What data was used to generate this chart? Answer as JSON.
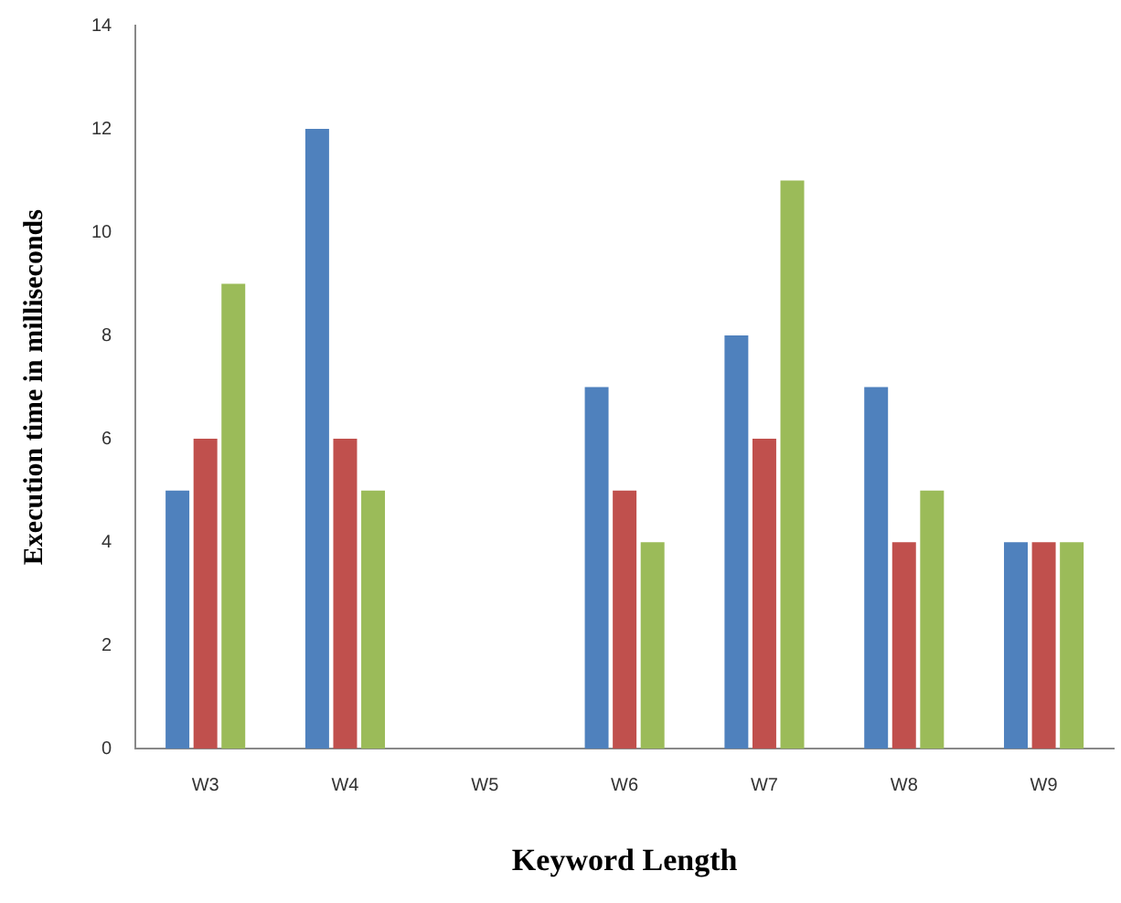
{
  "chart_data": {
    "type": "bar",
    "xlabel": "Keyword Length",
    "ylabel": "Execution time in milliseconds",
    "categories": [
      "W3",
      "W4",
      "W5",
      "W6",
      "W7",
      "W8",
      "W9"
    ],
    "series": [
      {
        "color": "#4f81bd",
        "values": [
          5,
          12,
          0,
          7,
          8,
          7,
          4
        ]
      },
      {
        "color": "#c0504d",
        "values": [
          6,
          6,
          0,
          5,
          6,
          4,
          4
        ]
      },
      {
        "color": "#9bbb59",
        "values": [
          9,
          5,
          0,
          4,
          11,
          5,
          4
        ]
      }
    ],
    "ylim": [
      0,
      14
    ],
    "yticks": [
      0,
      2,
      4,
      6,
      8,
      10,
      12,
      14
    ],
    "grid": false,
    "legend": false
  }
}
